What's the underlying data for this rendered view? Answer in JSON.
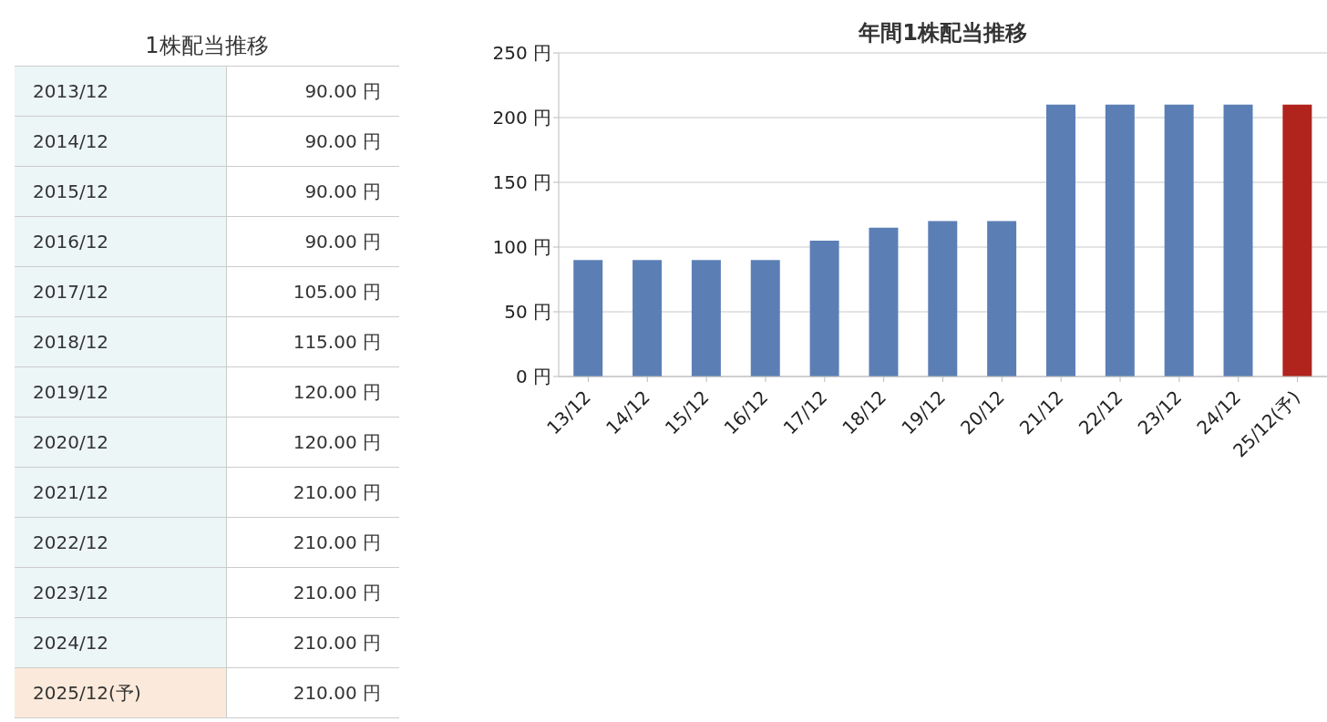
{
  "chart_data": [
    {
      "type": "other",
      "title": "1株配当推移",
      "categories": [
        "2013/12",
        "2014/12",
        "2015/12",
        "2016/12",
        "2017/12",
        "2018/12",
        "2019/12",
        "2020/12",
        "2021/12",
        "2022/12",
        "2023/12",
        "2024/12",
        "2025/12(予)"
      ],
      "value_labels": [
        "90.00 円",
        "90.00 円",
        "90.00 円",
        "90.00 円",
        "105.00 円",
        "115.00 円",
        "120.00 円",
        "120.00 円",
        "210.00 円",
        "210.00 円",
        "210.00 円",
        "210.00 円",
        "210.00 円"
      ],
      "colors": [
        "#edf6f7",
        "#edf6f7",
        "#edf6f7",
        "#edf6f7",
        "#edf6f7",
        "#edf6f7",
        "#edf6f7",
        "#edf6f7",
        "#edf6f7",
        "#edf6f7",
        "#edf6f7",
        "#edf6f7",
        "#fbeadb"
      ]
    },
    {
      "type": "bar",
      "title": "年間1株配当推移",
      "categories": [
        "13/12",
        "14/12",
        "15/12",
        "16/12",
        "17/12",
        "18/12",
        "19/12",
        "20/12",
        "21/12",
        "22/12",
        "23/12",
        "24/12",
        "25/12(予)"
      ],
      "values": [
        90,
        90,
        90,
        90,
        105,
        115,
        120,
        120,
        210,
        210,
        210,
        210,
        210
      ],
      "colors": [
        "#5b7fb5",
        "#5b7fb5",
        "#5b7fb5",
        "#5b7fb5",
        "#5b7fb5",
        "#5b7fb5",
        "#5b7fb5",
        "#5b7fb5",
        "#5b7fb5",
        "#5b7fb5",
        "#5b7fb5",
        "#5b7fb5",
        "#b0241d"
      ],
      "ylim": [
        0,
        250
      ],
      "yticks": [
        {
          "value": 0,
          "label": "0 円"
        },
        {
          "value": 50,
          "label": "50 円"
        },
        {
          "value": 100,
          "label": "100 円"
        },
        {
          "value": 150,
          "label": "150 円"
        },
        {
          "value": 200,
          "label": "200 円"
        },
        {
          "value": 250,
          "label": "250 円"
        }
      ],
      "grid": "y"
    }
  ]
}
